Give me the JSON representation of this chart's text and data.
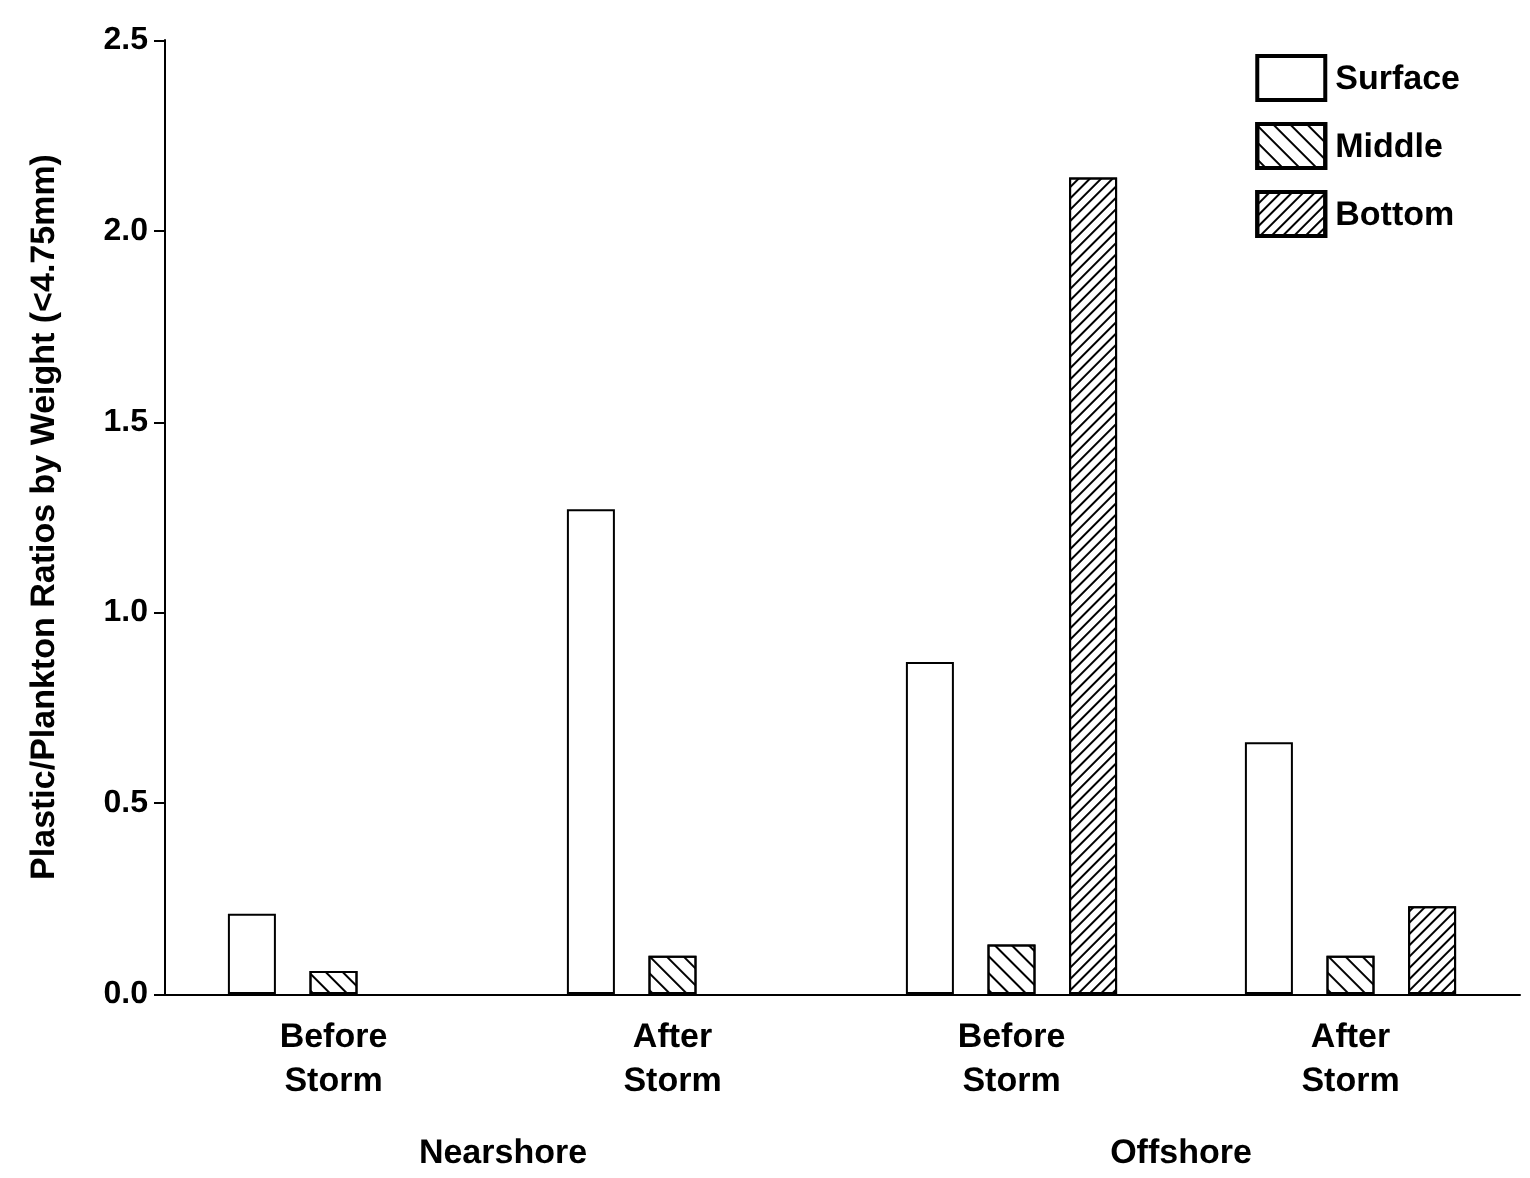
{
  "chart_data": {
    "type": "bar",
    "ylabel": "Plastic/Plankton Ratios by Weight (<4.75mm)",
    "categories": [
      "Before\nStorm",
      "After\nStorm",
      "Before\nStorm",
      "After\nStorm"
    ],
    "series": [
      {
        "name": "Surface",
        "color": "#ffffff",
        "values": [
          0.21,
          1.27,
          0.87,
          0.66
        ]
      },
      {
        "name": "Middle",
        "color": "#ffffff",
        "values": [
          0.06,
          0.1,
          0.13,
          0.1
        ]
      },
      {
        "name": "Bottom",
        "color": "#ffffff",
        "values": [
          null,
          null,
          2.14,
          0.23
        ]
      }
    ],
    "ylim": [
      0,
      2.5
    ],
    "yticks": [
      {
        "value": 0,
        "label": "0.0"
      },
      {
        "value": 0.5,
        "label": "0.5"
      },
      {
        "value": 1,
        "label": "1.0"
      },
      {
        "value": 1.5,
        "label": "1.5"
      },
      {
        "value": 2,
        "label": "2.0"
      },
      {
        "value": 2.5,
        "label": "2.5"
      }
    ],
    "annotations": [
      "Nearshore",
      "Offshore"
    ],
    "legend": "top right",
    "grid": false
  }
}
